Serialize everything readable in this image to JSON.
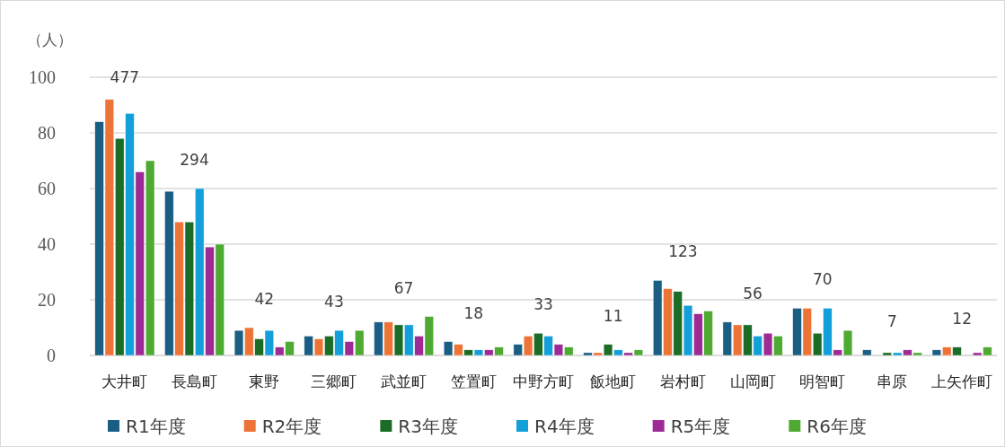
{
  "chart_data": {
    "type": "bar",
    "ylabel": "（人）",
    "categories": [
      "大井町",
      "長島町",
      "東野",
      "三郷町",
      "武並町",
      "笠置町",
      "中野方町",
      "飯地町",
      "岩村町",
      "山岡町",
      "明智町",
      "串原",
      "上矢作町"
    ],
    "series": [
      {
        "name": "R1年度",
        "color": "#1a5e84",
        "values": [
          84,
          59,
          9,
          7,
          12,
          5,
          4,
          1,
          27,
          12,
          17,
          2,
          2
        ]
      },
      {
        "name": "R2年度",
        "color": "#ed7436",
        "values": [
          92,
          48,
          10,
          6,
          12,
          4,
          7,
          1,
          24,
          11,
          17,
          0,
          3
        ]
      },
      {
        "name": "R3年度",
        "color": "#1b6c26",
        "values": [
          78,
          48,
          6,
          7,
          11,
          2,
          8,
          4,
          23,
          11,
          8,
          1,
          3
        ]
      },
      {
        "name": "R4年度",
        "color": "#139fd9",
        "values": [
          87,
          60,
          9,
          9,
          11,
          2,
          7,
          2,
          18,
          7,
          17,
          1,
          0
        ]
      },
      {
        "name": "R5年度",
        "color": "#9e2b95",
        "values": [
          66,
          39,
          3,
          5,
          7,
          2,
          4,
          1,
          15,
          8,
          2,
          2,
          1
        ]
      },
      {
        "name": "R6年度",
        "color": "#4faa33",
        "values": [
          70,
          40,
          5,
          9,
          14,
          3,
          3,
          2,
          16,
          7,
          9,
          1,
          3
        ]
      }
    ],
    "totals": [
      "477",
      "294",
      "42",
      "43",
      "67",
      "18",
      "33",
      "11",
      "123",
      "56",
      "70",
      "7",
      "12"
    ],
    "ylim": [
      0,
      100
    ],
    "yticks": [
      0,
      20,
      40,
      60,
      80,
      100
    ],
    "grid": "y",
    "legend": "bottom"
  }
}
